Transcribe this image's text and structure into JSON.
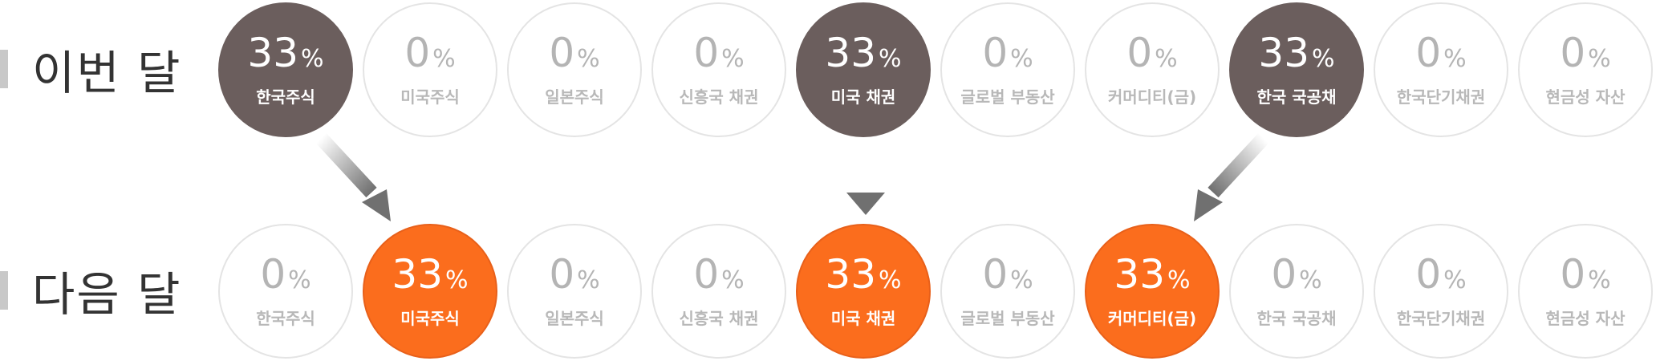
{
  "this_month": {
    "label": "이번 달",
    "items": [
      {
        "value": "33",
        "unit": "%",
        "name": "한국주식",
        "active": true
      },
      {
        "value": "0",
        "unit": "%",
        "name": "미국주식",
        "active": false
      },
      {
        "value": "0",
        "unit": "%",
        "name": "일본주식",
        "active": false
      },
      {
        "value": "0",
        "unit": "%",
        "name": "신흥국 채권",
        "active": false
      },
      {
        "value": "33",
        "unit": "%",
        "name": "미국 채권",
        "active": true
      },
      {
        "value": "0",
        "unit": "%",
        "name": "글로벌 부동산",
        "active": false
      },
      {
        "value": "0",
        "unit": "%",
        "name": "커머디티(금)",
        "active": false
      },
      {
        "value": "33",
        "unit": "%",
        "name": "한국 국공채",
        "active": true
      },
      {
        "value": "0",
        "unit": "%",
        "name": "한국단기채권",
        "active": false
      },
      {
        "value": "0",
        "unit": "%",
        "name": "현금성 자산",
        "active": false
      }
    ]
  },
  "next_month": {
    "label": "다음 달",
    "items": [
      {
        "value": "0",
        "unit": "%",
        "name": "한국주식",
        "active": false
      },
      {
        "value": "33",
        "unit": "%",
        "name": "미국주식",
        "active": true
      },
      {
        "value": "0",
        "unit": "%",
        "name": "일본주식",
        "active": false
      },
      {
        "value": "0",
        "unit": "%",
        "name": "신흥국 채권",
        "active": false
      },
      {
        "value": "33",
        "unit": "%",
        "name": "미국 채권",
        "active": true
      },
      {
        "value": "0",
        "unit": "%",
        "name": "글로벌 부동산",
        "active": false
      },
      {
        "value": "33",
        "unit": "%",
        "name": "커머디티(금)",
        "active": true
      },
      {
        "value": "0",
        "unit": "%",
        "name": "한국 국공채",
        "active": false
      },
      {
        "value": "0",
        "unit": "%",
        "name": "한국단기채권",
        "active": false
      },
      {
        "value": "0",
        "unit": "%",
        "name": "현금성 자산",
        "active": false
      }
    ]
  },
  "colors": {
    "this_month_active": "#6b5e5d",
    "next_month_active": "#fb6d1d",
    "inactive_border": "#e4e4e4",
    "inactive_text": "#b4b4b4"
  }
}
